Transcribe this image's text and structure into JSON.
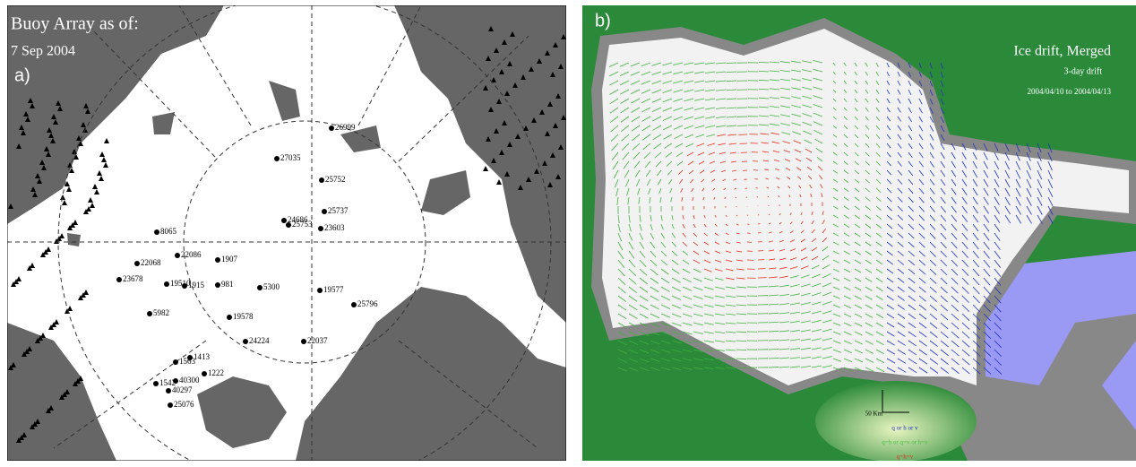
{
  "panel_a": {
    "label": "a)",
    "title": "Buoy Array as of:",
    "date": "7 Sep 2004",
    "buoys": [
      "26999",
      "27035",
      "25752",
      "25737",
      "24686",
      "25753",
      "23603",
      "8065",
      "22086",
      "1907",
      "22068",
      "23678",
      "19510",
      "1915",
      "981",
      "5300",
      "19577",
      "25796",
      "5982",
      "19578",
      "24224",
      "22037",
      "1413",
      "1563",
      "1222",
      "40300",
      "1542",
      "40297",
      "25076"
    ]
  },
  "panel_b": {
    "label": "b)",
    "title": "Ice drift, Merged",
    "subtitle": "3-day drift",
    "date_range": "2004/04/10 to 2004/04/13",
    "scale": "50 Km",
    "legend": [
      "q or h or v",
      "q=h or q=v or h=v",
      "q=h=v"
    ]
  }
}
